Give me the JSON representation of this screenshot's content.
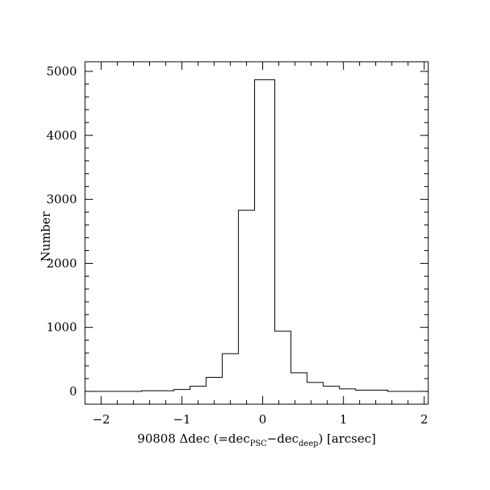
{
  "chart_data": {
    "type": "bar",
    "subtype": "histogram-step",
    "title": "",
    "xlabel": {
      "prefix": "90808 Δdec (=dec",
      "sub1": "PSC",
      "mid": "−dec",
      "sub2": "deep",
      "suffix": ") [arcsec]"
    },
    "ylabel": "Number",
    "xlim": [
      -2.2,
      2.05
    ],
    "ylim": [
      -200,
      5150
    ],
    "x_ticks": [
      -2,
      -1,
      0,
      1,
      2
    ],
    "x_tick_labels": [
      "−2",
      "−1",
      "0",
      "1",
      "2"
    ],
    "y_ticks": [
      0,
      1000,
      2000,
      3000,
      4000,
      5000
    ],
    "y_tick_labels": [
      "0",
      "1000",
      "2000",
      "3000",
      "4000",
      "5000"
    ],
    "bin_edges": [
      -2.2,
      -1.5,
      -1.1,
      -0.9,
      -0.7,
      -0.5,
      -0.3,
      -0.1,
      0.15,
      0.35,
      0.55,
      0.75,
      0.95,
      1.15,
      1.55,
      2.05
    ],
    "counts": [
      0,
      10,
      30,
      80,
      220,
      590,
      2830,
      4870,
      940,
      290,
      140,
      80,
      40,
      20,
      0
    ],
    "grid": false,
    "legend": "none"
  }
}
